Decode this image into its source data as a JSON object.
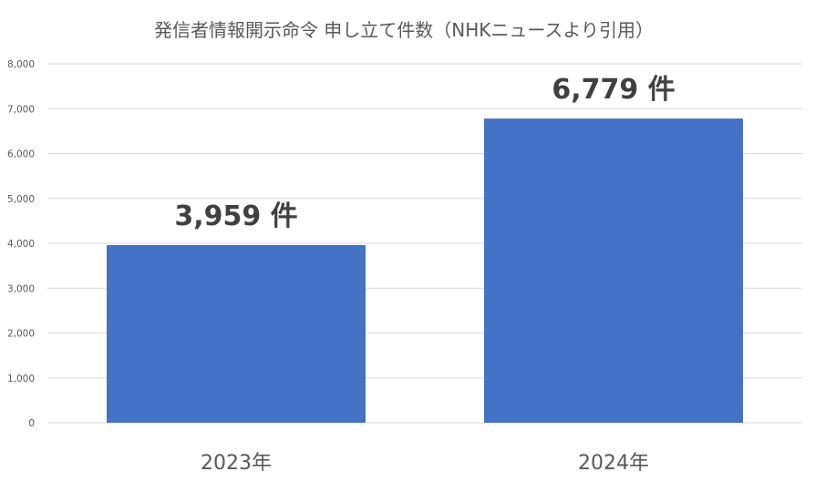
{
  "chart_data": {
    "type": "bar",
    "title": "発信者情報開示命令 申し立て件数（NHKニュースより引用）",
    "categories": [
      "2023年",
      "2024年"
    ],
    "values": [
      3959,
      6779
    ],
    "data_labels": [
      "3,959 件",
      "6,779 件"
    ],
    "yticks": [
      "0",
      "1,000",
      "2,000",
      "3,000",
      "4,000",
      "5,000",
      "6,000",
      "7,000",
      "8,000"
    ],
    "ylim": [
      0,
      8000
    ],
    "grid": true,
    "legend": "none",
    "bar_color": "#4472c4"
  }
}
